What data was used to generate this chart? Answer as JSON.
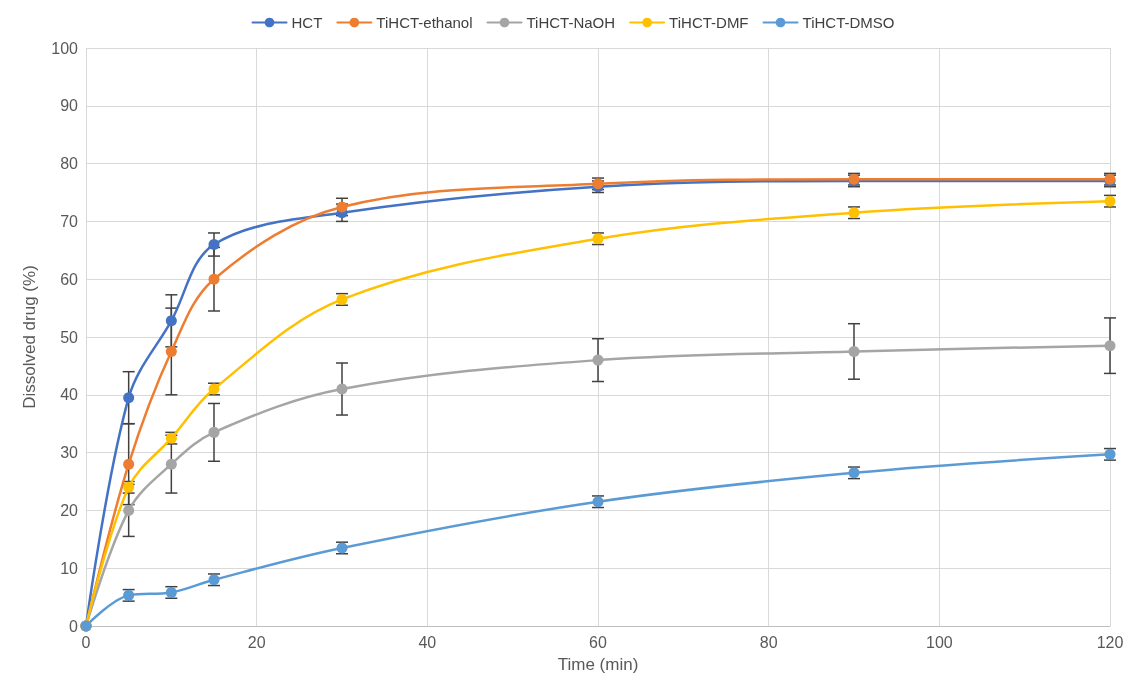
{
  "chart_data": {
    "type": "line",
    "xlabel": "Time (min)",
    "ylabel": "Dissolved drug (%)",
    "x": [
      0,
      5,
      10,
      15,
      30,
      60,
      90,
      120
    ],
    "xlim": [
      0,
      120
    ],
    "xticks": [
      0,
      20,
      40,
      60,
      80,
      100,
      120
    ],
    "ylim": [
      0,
      100
    ],
    "yticks": [
      0,
      10,
      20,
      30,
      40,
      50,
      60,
      70,
      80,
      90,
      100
    ],
    "grid": true,
    "legend": "top",
    "marker": "circle",
    "line_style": "solid",
    "series": [
      {
        "name": "HCT",
        "color": "#4472c4",
        "values": [
          0,
          39.5,
          52.8,
          66,
          71.5,
          76,
          77,
          77
        ],
        "errors": [
          null,
          4.5,
          4.5,
          2,
          1.5,
          1,
          1,
          1
        ]
      },
      {
        "name": "TiHCT-ethanol",
        "color": "#ed7d31",
        "values": [
          0,
          28,
          47.5,
          60,
          72.5,
          76.5,
          77.3,
          77.3
        ],
        "errors": [
          null,
          7,
          7.5,
          5.5,
          1.5,
          1,
          1,
          1
        ]
      },
      {
        "name": "TiHCT-NaOH",
        "color": "#a5a5a5",
        "values": [
          0,
          20,
          28,
          33.5,
          41,
          46,
          47.5,
          48.5
        ],
        "errors": [
          null,
          4.5,
          5,
          5,
          4.5,
          3.7,
          4.8,
          4.8
        ]
      },
      {
        "name": "TiHCT-DMF",
        "color": "#ffc000",
        "values": [
          0,
          24,
          32.5,
          41,
          56.5,
          67,
          71.5,
          73.5
        ],
        "errors": [
          null,
          1,
          1,
          1,
          1,
          1,
          1,
          1
        ]
      },
      {
        "name": "TiHCT-DMSO",
        "color": "#5b9bd5",
        "values": [
          0,
          5.3,
          5.8,
          8,
          13.5,
          21.5,
          26.5,
          29.7
        ],
        "errors": [
          null,
          1,
          1,
          1,
          1,
          1,
          1,
          1
        ]
      }
    ]
  }
}
